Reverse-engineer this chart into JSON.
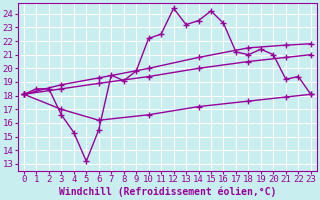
{
  "xlabel": "Windchill (Refroidissement éolien,°C)",
  "bg_color": "#c8eef0",
  "grid_color": "#ffffff",
  "line_color": "#990099",
  "marker": "+",
  "markersize": 5,
  "linewidth": 1.0,
  "xlim": [
    -0.5,
    23.5
  ],
  "ylim": [
    12.5,
    24.8
  ],
  "xticks": [
    0,
    1,
    2,
    3,
    4,
    5,
    6,
    7,
    8,
    9,
    10,
    11,
    12,
    13,
    14,
    15,
    16,
    17,
    18,
    19,
    20,
    21,
    22,
    23
  ],
  "yticks": [
    13,
    14,
    15,
    16,
    17,
    18,
    19,
    20,
    21,
    22,
    23,
    24
  ],
  "xlabel_fontsize": 7,
  "tick_fontsize": 6.5,
  "lines": [
    {
      "x": [
        0,
        1,
        2,
        3,
        4,
        5,
        6,
        7,
        8,
        9,
        10,
        11,
        12,
        13,
        14,
        15,
        16,
        17,
        18,
        19,
        20,
        21,
        22,
        23
      ],
      "y": [
        18.1,
        18.5,
        18.5,
        16.6,
        15.3,
        13.2,
        15.5,
        19.5,
        19.1,
        19.8,
        22.2,
        22.5,
        24.4,
        23.2,
        23.5,
        24.2,
        23.3,
        21.2,
        21.0,
        21.4,
        21.0,
        19.2,
        19.4,
        18.1
      ]
    },
    {
      "x": [
        0,
        3,
        6,
        10,
        14,
        18,
        21,
        23
      ],
      "y": [
        18.1,
        18.8,
        19.3,
        20.0,
        20.8,
        21.5,
        21.7,
        21.8
      ]
    },
    {
      "x": [
        0,
        3,
        6,
        10,
        14,
        18,
        21,
        23
      ],
      "y": [
        18.1,
        18.5,
        18.9,
        19.4,
        20.0,
        20.5,
        20.8,
        21.0
      ]
    },
    {
      "x": [
        0,
        3,
        6,
        10,
        14,
        18,
        21,
        23
      ],
      "y": [
        18.1,
        17.0,
        16.2,
        16.6,
        17.2,
        17.6,
        17.9,
        18.1
      ]
    }
  ]
}
